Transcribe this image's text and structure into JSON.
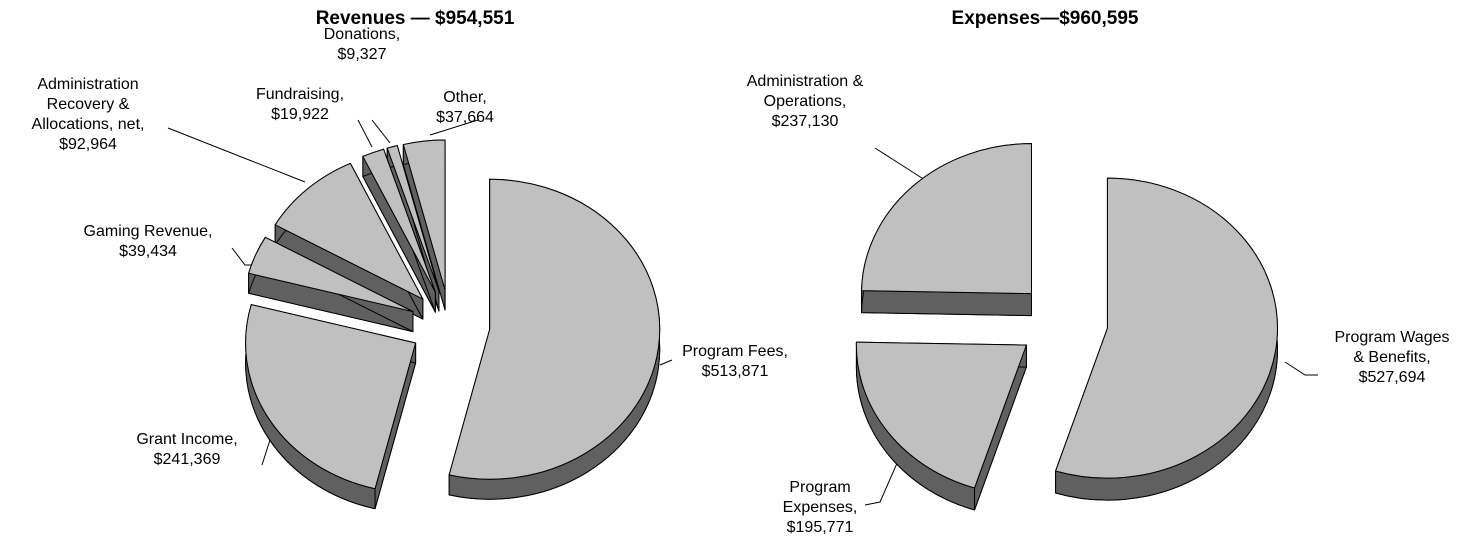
{
  "chart_data": [
    {
      "type": "pie",
      "title": "Revenues — $954,551",
      "categories": [
        "Program Fees,",
        "Grant Income,",
        "Gaming Revenue,",
        "Administration Recovery & Allocations, net,",
        "Fundraising,",
        "Donations,",
        "Other,"
      ],
      "values": [
        513871,
        241369,
        39434,
        92964,
        19922,
        9327,
        37664
      ],
      "value_labels": [
        "$513,871",
        "$241,369",
        "$39,434",
        "$92,964",
        "$19,922",
        "$9,327",
        "$37,664"
      ],
      "color": "#c0c0c0",
      "side_color": "#606060"
    },
    {
      "type": "pie",
      "title": "Expenses—$960,595",
      "categories": [
        "Program Wages & Benefits,",
        "Program Expenses,",
        "Administration & Operations,"
      ],
      "values": [
        527694,
        195771,
        237130
      ],
      "value_labels": [
        "$527,694",
        "$195,771",
        "$237,130"
      ],
      "color": "#c0c0c0",
      "side_color": "#606060"
    }
  ]
}
